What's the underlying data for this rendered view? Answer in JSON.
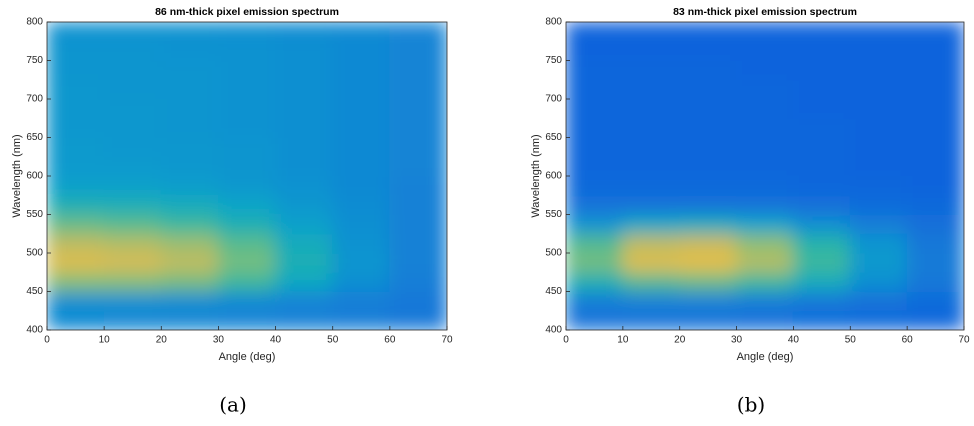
{
  "chart_data": [
    {
      "type": "heatmap",
      "title": "86 nm-thick pixel emission spectrum",
      "xlabel": "Angle (deg)",
      "ylabel": "Wavelength (nm)",
      "caption": "(a)",
      "x_edges": [
        0,
        10,
        20,
        30,
        40,
        50,
        60,
        70
      ],
      "y_edges": [
        400,
        425,
        450,
        475,
        500,
        525,
        550,
        575,
        600,
        625,
        650,
        675,
        700,
        725,
        750,
        775,
        800
      ],
      "z": [
        [
          0.28,
          0.27,
          0.27,
          0.26,
          0.25,
          0.24,
          0.22
        ],
        [
          0.3,
          0.3,
          0.29,
          0.28,
          0.26,
          0.24,
          0.22
        ],
        [
          0.62,
          0.62,
          0.6,
          0.52,
          0.4,
          0.3,
          0.24
        ],
        [
          0.78,
          0.76,
          0.72,
          0.6,
          0.45,
          0.32,
          0.25
        ],
        [
          0.72,
          0.7,
          0.66,
          0.56,
          0.42,
          0.31,
          0.25
        ],
        [
          0.58,
          0.56,
          0.52,
          0.45,
          0.36,
          0.3,
          0.25
        ],
        [
          0.45,
          0.44,
          0.42,
          0.38,
          0.33,
          0.29,
          0.25
        ],
        [
          0.36,
          0.36,
          0.35,
          0.33,
          0.31,
          0.28,
          0.25
        ],
        [
          0.34,
          0.34,
          0.33,
          0.32,
          0.3,
          0.28,
          0.26
        ],
        [
          0.34,
          0.33,
          0.33,
          0.32,
          0.3,
          0.28,
          0.26
        ],
        [
          0.33,
          0.33,
          0.32,
          0.31,
          0.3,
          0.28,
          0.26
        ],
        [
          0.33,
          0.33,
          0.32,
          0.31,
          0.3,
          0.28,
          0.26
        ],
        [
          0.33,
          0.32,
          0.32,
          0.31,
          0.3,
          0.28,
          0.26
        ],
        [
          0.32,
          0.32,
          0.32,
          0.31,
          0.3,
          0.28,
          0.26
        ],
        [
          0.32,
          0.32,
          0.31,
          0.31,
          0.3,
          0.28,
          0.26
        ],
        [
          0.31,
          0.31,
          0.31,
          0.3,
          0.29,
          0.28,
          0.26
        ]
      ],
      "colormap": [
        "#352a87",
        "#0f5cdd",
        "#1481d6",
        "#06a4ca",
        "#2eb7a4",
        "#87bf77",
        "#d1bb59",
        "#fec832",
        "#f9fb0e"
      ],
      "xlim": [
        0,
        70
      ],
      "xticks": [
        0,
        10,
        20,
        30,
        40,
        50,
        60,
        70
      ],
      "ylim": [
        400,
        800
      ],
      "yticks": [
        400,
        450,
        500,
        550,
        600,
        650,
        700,
        750,
        800
      ]
    },
    {
      "type": "heatmap",
      "title": "83 nm-thick pixel emission spectrum",
      "xlabel": "Angle (deg)",
      "ylabel": "Wavelength (nm)",
      "caption": "(b)",
      "x_edges": [
        0,
        10,
        20,
        30,
        40,
        50,
        60,
        70
      ],
      "y_edges": [
        400,
        425,
        450,
        475,
        500,
        525,
        550,
        575,
        600,
        625,
        650,
        675,
        700,
        725,
        750,
        775,
        800
      ],
      "z": [
        [
          0.2,
          0.2,
          0.2,
          0.19,
          0.18,
          0.17,
          0.16
        ],
        [
          0.24,
          0.25,
          0.25,
          0.24,
          0.22,
          0.2,
          0.18
        ],
        [
          0.45,
          0.55,
          0.58,
          0.52,
          0.42,
          0.3,
          0.22
        ],
        [
          0.6,
          0.78,
          0.8,
          0.7,
          0.52,
          0.34,
          0.23
        ],
        [
          0.55,
          0.72,
          0.74,
          0.64,
          0.48,
          0.32,
          0.22
        ],
        [
          0.32,
          0.4,
          0.42,
          0.38,
          0.3,
          0.24,
          0.19
        ],
        [
          0.2,
          0.2,
          0.2,
          0.2,
          0.19,
          0.18,
          0.17
        ],
        [
          0.17,
          0.17,
          0.17,
          0.17,
          0.16,
          0.16,
          0.15
        ],
        [
          0.16,
          0.16,
          0.16,
          0.16,
          0.16,
          0.15,
          0.15
        ],
        [
          0.16,
          0.16,
          0.16,
          0.16,
          0.16,
          0.15,
          0.15
        ],
        [
          0.16,
          0.16,
          0.16,
          0.16,
          0.16,
          0.15,
          0.15
        ],
        [
          0.16,
          0.16,
          0.16,
          0.16,
          0.15,
          0.15,
          0.15
        ],
        [
          0.16,
          0.16,
          0.16,
          0.16,
          0.15,
          0.15,
          0.15
        ],
        [
          0.16,
          0.16,
          0.16,
          0.15,
          0.15,
          0.15,
          0.15
        ],
        [
          0.15,
          0.15,
          0.15,
          0.15,
          0.15,
          0.15,
          0.15
        ],
        [
          0.15,
          0.15,
          0.15,
          0.15,
          0.15,
          0.15,
          0.15
        ]
      ],
      "colormap": [
        "#352a87",
        "#0f5cdd",
        "#1481d6",
        "#06a4ca",
        "#2eb7a4",
        "#87bf77",
        "#d1bb59",
        "#fec832",
        "#f9fb0e"
      ],
      "xlim": [
        0,
        70
      ],
      "xticks": [
        0,
        10,
        20,
        30,
        40,
        50,
        60,
        70
      ],
      "ylim": [
        400,
        800
      ],
      "yticks": [
        400,
        450,
        500,
        550,
        600,
        650,
        700,
        750,
        800
      ]
    }
  ]
}
